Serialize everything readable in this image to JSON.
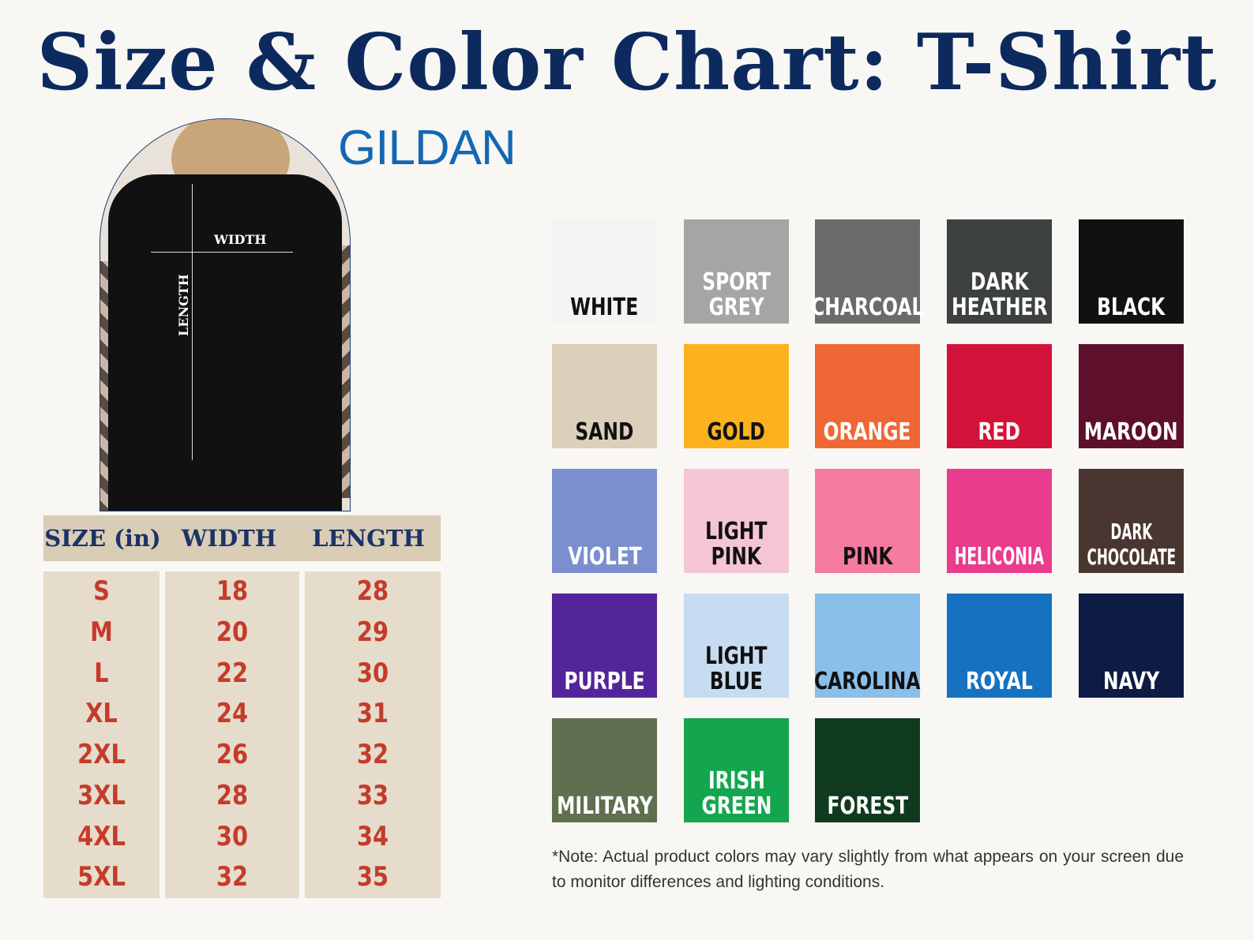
{
  "title": "Size & Color Chart: T-Shirt",
  "brand": "GILDAN",
  "photo": {
    "width_label": "WIDTH",
    "length_label": "LENGTH"
  },
  "size_table": {
    "headers": [
      "SIZE (in)",
      "WIDTH",
      "LENGTH"
    ],
    "sizes": [
      "S",
      "M",
      "L",
      "XL",
      "2XL",
      "3XL",
      "4XL",
      "5XL"
    ],
    "widths": [
      "18",
      "20",
      "22",
      "24",
      "26",
      "28",
      "30",
      "32"
    ],
    "lengths": [
      "28",
      "29",
      "30",
      "31",
      "32",
      "33",
      "34",
      "35"
    ],
    "text_color": "#c53b2a"
  },
  "colors": [
    {
      "name": "WHITE",
      "hex": "#f4f4f4",
      "text": "#111"
    },
    {
      "name": "SPORT\nGREY",
      "hex": "#a5a5a5",
      "text": "#fff"
    },
    {
      "name": "CHARCOAL",
      "hex": "#6b6b6b",
      "text": "#fff"
    },
    {
      "name": "DARK\nHEATHER",
      "hex": "#3d4142",
      "text": "#fff"
    },
    {
      "name": "BLACK",
      "hex": "#111111",
      "text": "#fff"
    },
    {
      "name": "SAND",
      "hex": "#ddd0bb",
      "text": "#111"
    },
    {
      "name": "GOLD",
      "hex": "#fbb21c",
      "text": "#111"
    },
    {
      "name": "ORANGE",
      "hex": "#ef6734",
      "text": "#fff"
    },
    {
      "name": "RED",
      "hex": "#d3123a",
      "text": "#fff"
    },
    {
      "name": "MAROON",
      "hex": "#5e0f2c",
      "text": "#fff"
    },
    {
      "name": "VIOLET",
      "hex": "#7b8fce",
      "text": "#fff"
    },
    {
      "name": "LIGHT\nPINK",
      "hex": "#f6c5d5",
      "text": "#111"
    },
    {
      "name": "PINK",
      "hex": "#f57ba0",
      "text": "#111"
    },
    {
      "name": "HELICONIA",
      "hex": "#ea3b8d",
      "text": "#fff"
    },
    {
      "name": "DARK\nCHOCOLATE",
      "hex": "#4a3631",
      "text": "#fff"
    },
    {
      "name": "PURPLE",
      "hex": "#53259a",
      "text": "#fff"
    },
    {
      "name": "LIGHT\nBLUE",
      "hex": "#c7dcf0",
      "text": "#111"
    },
    {
      "name": "CAROLINA",
      "hex": "#8abfea",
      "text": "#111"
    },
    {
      "name": "ROYAL",
      "hex": "#1672c0",
      "text": "#fff"
    },
    {
      "name": "NAVY",
      "hex": "#0e1b45",
      "text": "#fff"
    },
    {
      "name": "MILITARY",
      "hex": "#5f6f50",
      "text": "#fff"
    },
    {
      "name": "IRISH\nGREEN",
      "hex": "#14a64e",
      "text": "#fff"
    },
    {
      "name": "FOREST",
      "hex": "#103a1e",
      "text": "#fff"
    }
  ],
  "note": "*Note: Actual product colors may vary slightly from what appears on your screen due to monitor differences and lighting conditions."
}
